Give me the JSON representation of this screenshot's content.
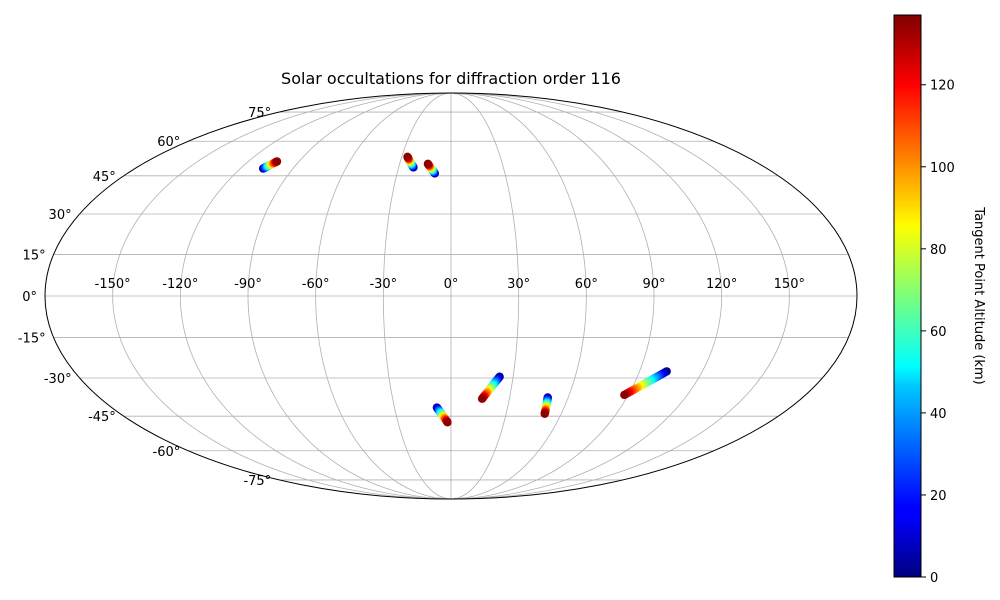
{
  "chart_data": {
    "type": "scatter",
    "projection": "mollweide",
    "title": "Solar occultations for diffraction order 116",
    "xlabel": "",
    "ylabel": "",
    "grid": true,
    "xlim": [
      -180,
      180
    ],
    "ylim": [
      -90,
      90
    ],
    "x_ticks": [
      -150,
      -120,
      -90,
      -60,
      -30,
      0,
      30,
      60,
      90,
      120,
      150
    ],
    "x_tick_labels": [
      "-150°",
      "-120°",
      "-90°",
      "-60°",
      "-30°",
      "0°",
      "30°",
      "60°",
      "90°",
      "120°",
      "150°"
    ],
    "y_ticks": [
      -75,
      -60,
      -45,
      -30,
      -15,
      0,
      15,
      30,
      45,
      60,
      75
    ],
    "y_tick_labels": [
      "-75°",
      "-60°",
      "-45°",
      "-30°",
      "-15°",
      "0°",
      "15°",
      "30°",
      "45°",
      "60°",
      "75°"
    ],
    "colorbar": {
      "label": "Tangent Point Altitude (km)",
      "colormap": "jet",
      "range": [
        0,
        137
      ],
      "ticks": [
        0,
        20,
        40,
        60,
        80,
        100,
        120
      ],
      "tick_labels": [
        "0",
        "20",
        "40",
        "60",
        "80",
        "100",
        "120"
      ]
    },
    "series": [
      {
        "lon_start": -107,
        "lat_start": 48,
        "lon_end": -103,
        "lat_end": 51,
        "alt_start": 0,
        "alt_end": 135
      },
      {
        "lon_start": -21.5,
        "lat_start": 48.5,
        "lon_end": -26.5,
        "lat_end": 53,
        "alt_start": 0,
        "alt_end": 135
      },
      {
        "lon_start": -9,
        "lat_start": 46,
        "lon_end": -13.5,
        "lat_end": 50,
        "alt_start": 0,
        "alt_end": 135
      },
      {
        "lon_start": 23.5,
        "lat_start": -29.5,
        "lon_end": 16,
        "lat_end": -38,
        "alt_start": 0,
        "alt_end": 135
      },
      {
        "lon_start": 49.5,
        "lat_start": -37.5,
        "lon_end": 51,
        "lat_end": -44,
        "alt_start": 0,
        "alt_end": 135
      },
      {
        "lon_start": 103,
        "lat_start": -27.5,
        "lon_end": 88,
        "lat_end": -36.5,
        "alt_start": 0,
        "alt_end": 135
      },
      {
        "lon_start": -7.5,
        "lat_start": -41.5,
        "lon_end": -2,
        "lat_end": -47.5,
        "alt_start": 0,
        "alt_end": 135
      }
    ]
  }
}
